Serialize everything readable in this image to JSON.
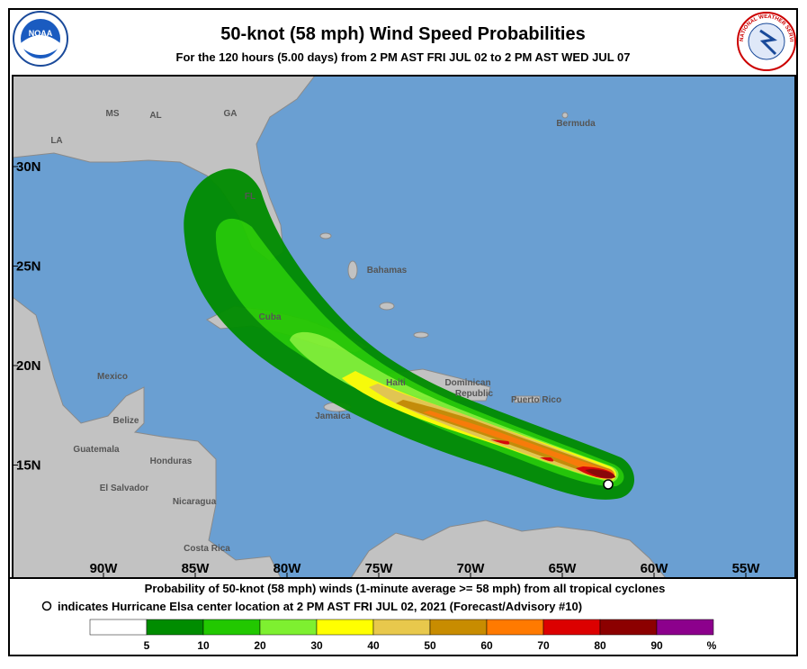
{
  "header": {
    "title": "50-knot (58 mph) Wind Speed Probabilities",
    "subtitle": "For the 120 hours (5.00 days) from 2 PM AST FRI JUL 02 to 2 PM AST WED JUL 07",
    "noaa_logo": "NOAA",
    "nws_logo": "NATIONAL WEATHER SERVICE"
  },
  "map": {
    "lat_ticks": [
      {
        "value": 30,
        "label": "30N"
      },
      {
        "value": 25,
        "label": "25N"
      },
      {
        "value": 20,
        "label": "20N"
      },
      {
        "value": 15,
        "label": "15N"
      }
    ],
    "lon_ticks": [
      {
        "value": -90,
        "label": "90W"
      },
      {
        "value": -85,
        "label": "85W"
      },
      {
        "value": -80,
        "label": "80W"
      },
      {
        "value": -75,
        "label": "75W"
      },
      {
        "value": -70,
        "label": "70W"
      },
      {
        "value": -65,
        "label": "65W"
      },
      {
        "value": -60,
        "label": "60W"
      },
      {
        "value": -55,
        "label": "55W"
      }
    ],
    "places": [
      "MS",
      "AL",
      "GA",
      "LA",
      "Bermuda",
      "FL",
      "Bahamas",
      "Cuba",
      "Mexico",
      "Haiti",
      "Dominican",
      "Republic",
      "Puerto Rico",
      "Belize",
      "Jamaica",
      "Guatemala",
      "Honduras",
      "El Salvador",
      "Nicaragua",
      "Costa Rica"
    ]
  },
  "footer": {
    "line1": "Probability of 50-knot (58 mph) winds (1-minute average >= 58 mph) from all tropical cyclones",
    "line2": "indicates Hurricane Elsa center location at 2 PM AST FRI JUL 02, 2021 (Forecast/Advisory #10)"
  },
  "legend": {
    "thresholds": [
      5,
      10,
      20,
      30,
      40,
      50,
      60,
      70,
      80,
      90
    ],
    "unit": "%",
    "colors": [
      "#ffffff",
      "#008c00",
      "#22c800",
      "#7ef030",
      "#ffff00",
      "#e8c84c",
      "#c88c00",
      "#ff7a00",
      "#dc0000",
      "#8c0000",
      "#8c008c"
    ]
  }
}
